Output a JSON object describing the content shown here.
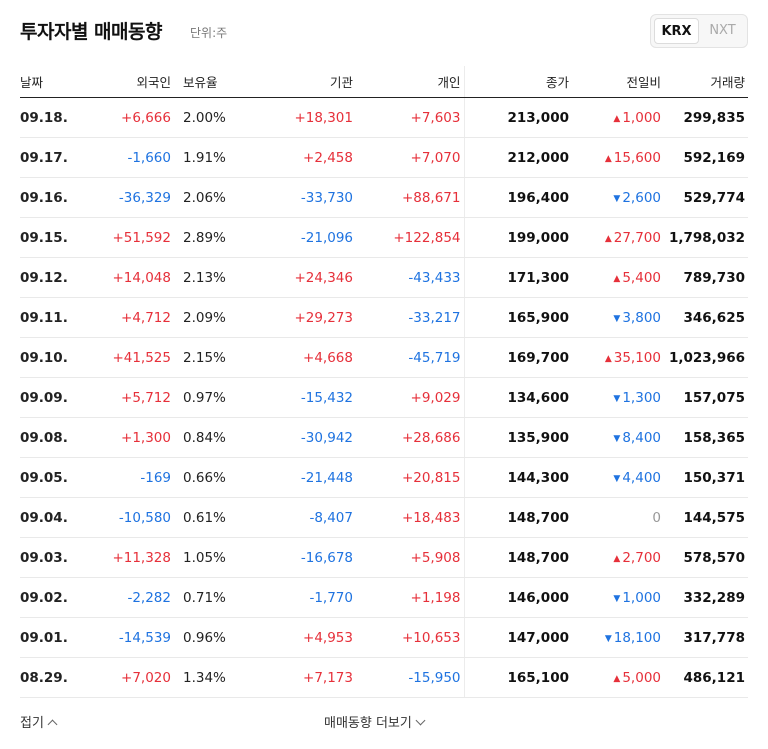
{
  "header": {
    "title": "투자자별 매매동향",
    "unit": "단위:주",
    "tabs": [
      "KRX",
      "NXT"
    ]
  },
  "columns": [
    "날짜",
    "외국인",
    "보유율",
    "기관",
    "개인",
    "종가",
    "전일비",
    "거래량"
  ],
  "rows": [
    {
      "date": "09.18.",
      "foreign": "+6,666",
      "ratio": "2.00%",
      "inst": "+18,301",
      "indiv": "+7,603",
      "close": "213,000",
      "dir": "up",
      "chg": "1,000",
      "vol": "299,835"
    },
    {
      "date": "09.17.",
      "foreign": "-1,660",
      "ratio": "1.91%",
      "inst": "+2,458",
      "indiv": "+7,070",
      "close": "212,000",
      "dir": "up",
      "chg": "15,600",
      "vol": "592,169"
    },
    {
      "date": "09.16.",
      "foreign": "-36,329",
      "ratio": "2.06%",
      "inst": "-33,730",
      "indiv": "+88,671",
      "close": "196,400",
      "dir": "down",
      "chg": "2,600",
      "vol": "529,774"
    },
    {
      "date": "09.15.",
      "foreign": "+51,592",
      "ratio": "2.89%",
      "inst": "-21,096",
      "indiv": "+122,854",
      "close": "199,000",
      "dir": "up",
      "chg": "27,700",
      "vol": "1,798,032"
    },
    {
      "date": "09.12.",
      "foreign": "+14,048",
      "ratio": "2.13%",
      "inst": "+24,346",
      "indiv": "-43,433",
      "close": "171,300",
      "dir": "up",
      "chg": "5,400",
      "vol": "789,730"
    },
    {
      "date": "09.11.",
      "foreign": "+4,712",
      "ratio": "2.09%",
      "inst": "+29,273",
      "indiv": "-33,217",
      "close": "165,900",
      "dir": "down",
      "chg": "3,800",
      "vol": "346,625"
    },
    {
      "date": "09.10.",
      "foreign": "+41,525",
      "ratio": "2.15%",
      "inst": "+4,668",
      "indiv": "-45,719",
      "close": "169,700",
      "dir": "up",
      "chg": "35,100",
      "vol": "1,023,966"
    },
    {
      "date": "09.09.",
      "foreign": "+5,712",
      "ratio": "0.97%",
      "inst": "-15,432",
      "indiv": "+9,029",
      "close": "134,600",
      "dir": "down",
      "chg": "1,300",
      "vol": "157,075"
    },
    {
      "date": "09.08.",
      "foreign": "+1,300",
      "ratio": "0.84%",
      "inst": "-30,942",
      "indiv": "+28,686",
      "close": "135,900",
      "dir": "down",
      "chg": "8,400",
      "vol": "158,365"
    },
    {
      "date": "09.05.",
      "foreign": "-169",
      "ratio": "0.66%",
      "inst": "-21,448",
      "indiv": "+20,815",
      "close": "144,300",
      "dir": "down",
      "chg": "4,400",
      "vol": "150,371"
    },
    {
      "date": "09.04.",
      "foreign": "-10,580",
      "ratio": "0.61%",
      "inst": "-8,407",
      "indiv": "+18,483",
      "close": "148,700",
      "dir": "flat",
      "chg": "0",
      "vol": "144,575"
    },
    {
      "date": "09.03.",
      "foreign": "+11,328",
      "ratio": "1.05%",
      "inst": "-16,678",
      "indiv": "+5,908",
      "close": "148,700",
      "dir": "up",
      "chg": "2,700",
      "vol": "578,570"
    },
    {
      "date": "09.02.",
      "foreign": "-2,282",
      "ratio": "0.71%",
      "inst": "-1,770",
      "indiv": "+1,198",
      "close": "146,000",
      "dir": "down",
      "chg": "1,000",
      "vol": "332,289"
    },
    {
      "date": "09.01.",
      "foreign": "-14,539",
      "ratio": "0.96%",
      "inst": "+4,953",
      "indiv": "+10,653",
      "close": "147,000",
      "dir": "down",
      "chg": "18,100",
      "vol": "317,778"
    },
    {
      "date": "08.29.",
      "foreign": "+7,020",
      "ratio": "1.34%",
      "inst": "+7,173",
      "indiv": "-15,950",
      "close": "165,100",
      "dir": "up",
      "chg": "5,000",
      "vol": "486,121"
    }
  ],
  "footer": {
    "fold": "접기",
    "more": "매매동향 더보기"
  }
}
